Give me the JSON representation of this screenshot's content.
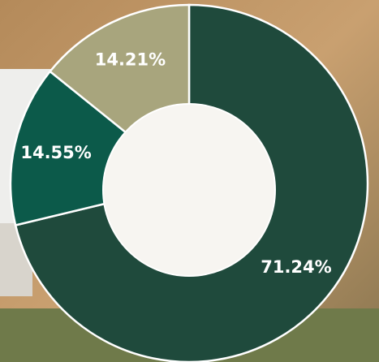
{
  "chart_data": {
    "type": "donut",
    "values": [
      71.24,
      14.55,
      14.21
    ],
    "value_labels": [
      "71.24%",
      "14.55%",
      "14.21%"
    ],
    "colors": [
      "#1f4a3c",
      "#0c5a4a",
      "#a8a57d"
    ]
  }
}
